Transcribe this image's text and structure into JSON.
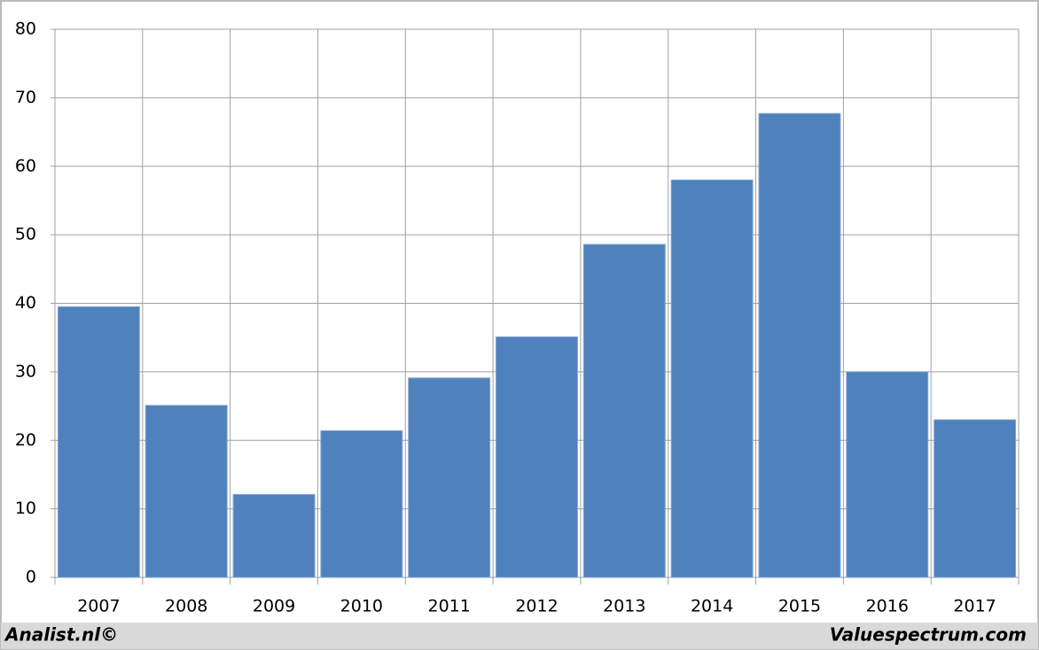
{
  "chart_data": {
    "type": "bar",
    "categories": [
      "2007",
      "2008",
      "2009",
      "2010",
      "2011",
      "2012",
      "2013",
      "2014",
      "2015",
      "2016",
      "2017"
    ],
    "values": [
      39.5,
      25.1,
      12.1,
      21.4,
      29.1,
      35.1,
      48.6,
      58.0,
      67.7,
      30.0,
      23.0
    ],
    "color": "#4f81bd",
    "ylim": [
      0,
      80
    ],
    "yticks": [
      0,
      10,
      20,
      30,
      40,
      50,
      60,
      70,
      80
    ],
    "grid": true
  },
  "footer": {
    "left": "Analist.nl©",
    "right": "Valuespectrum.com"
  }
}
